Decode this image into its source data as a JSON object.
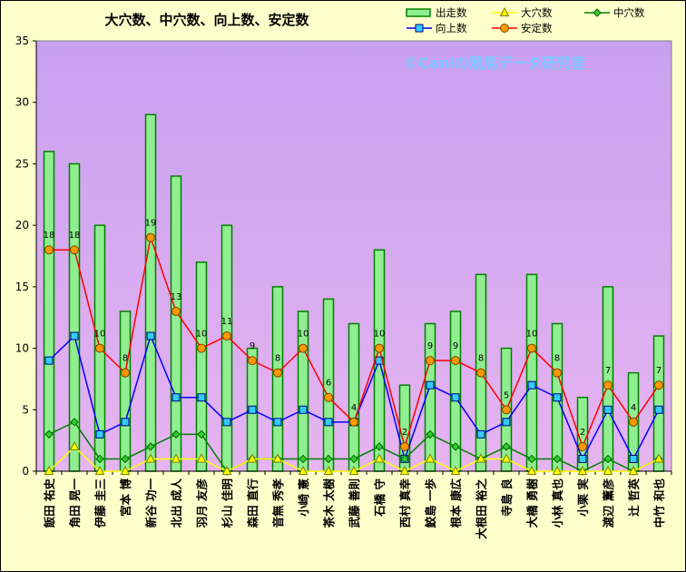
{
  "chart_data": {
    "type": "bar",
    "title": "大穴数、中穴数、向上数、安定数",
    "watermark": "©Caniの競馬データ研究室",
    "ylim": [
      0,
      35
    ],
    "yticks": [
      0,
      5,
      10,
      15,
      20,
      25,
      30,
      35
    ],
    "grid": false,
    "legend_position": "top-right",
    "colors": {
      "plot_bg_top": "#C8A0F0",
      "plot_bg_bottom": "#E6B4F0",
      "bar_fill": "#90EE90",
      "bar_edge": "#008000",
      "dai": "#FFFF00",
      "chu": "#008000",
      "kojo": "#0000FF",
      "antei": "#FF0000"
    },
    "categories": [
      "飯田 祐史",
      "角田 晃一",
      "伊藤 圭三",
      "宮本 博",
      "新谷 功一",
      "北出 成人",
      "羽月 友彦",
      "杉山 佳明",
      "森田 直行",
      "音無 秀孝",
      "小崎 憲",
      "茶木 太樹",
      "武藤 善則",
      "石橋 守",
      "西村 真幸",
      "鮫島 一歩",
      "根本 康広",
      "大根田 裕之",
      "寺島 良",
      "大橋 勇樹",
      "小林 真也",
      "小栗 実",
      "渡辺 薫彦",
      "辻 哲英",
      "中竹 和也"
    ],
    "series": [
      {
        "name": "出走数",
        "kind": "bar",
        "values": [
          26,
          25,
          20,
          13,
          29,
          24,
          17,
          20,
          10,
          15,
          13,
          14,
          12,
          18,
          7,
          12,
          13,
          16,
          10,
          16,
          12,
          6,
          15,
          8,
          11
        ]
      },
      {
        "name": "大穴数",
        "kind": "line",
        "marker": "triangle",
        "values": [
          0,
          2,
          0,
          0,
          1,
          1,
          1,
          0,
          1,
          1,
          0,
          0,
          0,
          1,
          0,
          1,
          0,
          1,
          1,
          0,
          0,
          0,
          0,
          0,
          1
        ]
      },
      {
        "name": "中穴数",
        "kind": "line",
        "marker": "diamond",
        "values": [
          3,
          4,
          1,
          1,
          2,
          3,
          3,
          0,
          1,
          1,
          1,
          1,
          1,
          2,
          1,
          3,
          2,
          1,
          2,
          1,
          1,
          0,
          1,
          0,
          1
        ]
      },
      {
        "name": "向上数",
        "kind": "line",
        "marker": "square",
        "values": [
          9,
          11,
          3,
          4,
          11,
          6,
          6,
          4,
          5,
          4,
          5,
          4,
          4,
          9,
          1,
          7,
          6,
          3,
          4,
          7,
          6,
          1,
          5,
          1,
          5
        ]
      },
      {
        "name": "安定数",
        "kind": "line",
        "marker": "circle",
        "values": [
          18,
          18,
          10,
          8,
          19,
          13,
          10,
          11,
          9,
          8,
          10,
          6,
          4,
          10,
          2,
          9,
          9,
          8,
          5,
          10,
          8,
          2,
          7,
          4,
          7
        ]
      }
    ],
    "data_labels": {
      "series": "安定数",
      "values": [
        "18",
        "18",
        "10",
        "8",
        "19",
        "13",
        "10",
        "11",
        "9",
        "8",
        "10",
        "6",
        "4",
        "10",
        "2",
        "9",
        "9",
        "8",
        "5",
        "10",
        "8",
        "2",
        "7",
        "4",
        "7"
      ]
    }
  }
}
